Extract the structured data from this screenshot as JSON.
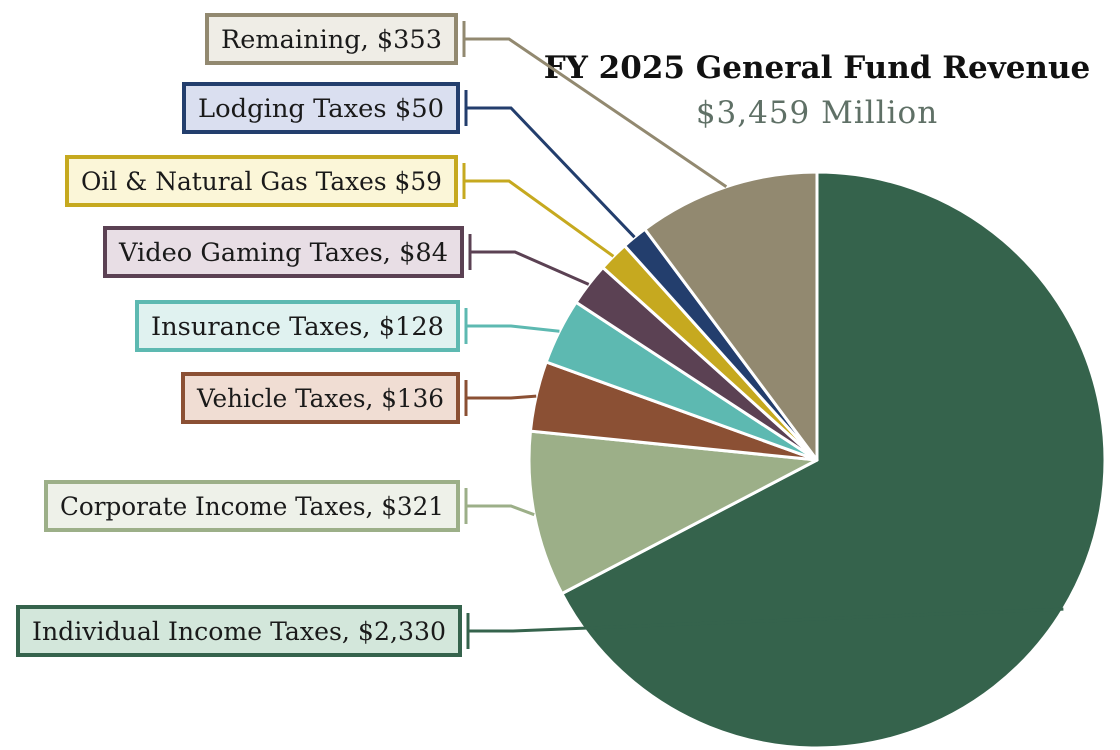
{
  "chart_data": {
    "type": "pie",
    "title": "FY 2025 General Fund Revenue",
    "subtitle": "$3,459 Million",
    "slices": [
      {
        "name": "Individual Income Taxes",
        "value": 2330,
        "label": "Individual Income Taxes, $2,330",
        "color": "#35634c",
        "box_fill": "#d3e7db"
      },
      {
        "name": "Corporate Income Taxes",
        "value": 321,
        "label": "Corporate Income Taxes, $321",
        "color": "#9caf88",
        "box_fill": "#eef1e9"
      },
      {
        "name": "Vehicle Taxes",
        "value": 136,
        "label": "Vehicle Taxes, $136",
        "color": "#8b5034",
        "box_fill": "#f0ddd3"
      },
      {
        "name": "Insurance Taxes",
        "value": 128,
        "label": "Insurance Taxes, $128",
        "color": "#5db9b1",
        "box_fill": "#e0f2f0"
      },
      {
        "name": "Video Gaming Taxes",
        "value": 84,
        "label": "Video Gaming Taxes, $84",
        "color": "#5b4153",
        "box_fill": "#e8dee5"
      },
      {
        "name": "Oil & Natural Gas Taxes",
        "value": 59,
        "label": "Oil & Natural Gas Taxes $59",
        "color": "#c6a91f",
        "box_fill": "#fbf6d8"
      },
      {
        "name": "Lodging Taxes",
        "value": 50,
        "label": "Lodging Taxes $50",
        "color": "#233e6d",
        "box_fill": "#dadff0"
      },
      {
        "name": "Remaining",
        "value": 353,
        "label": "Remaining, $353",
        "color": "#928970",
        "box_fill": "#efede6"
      }
    ]
  }
}
